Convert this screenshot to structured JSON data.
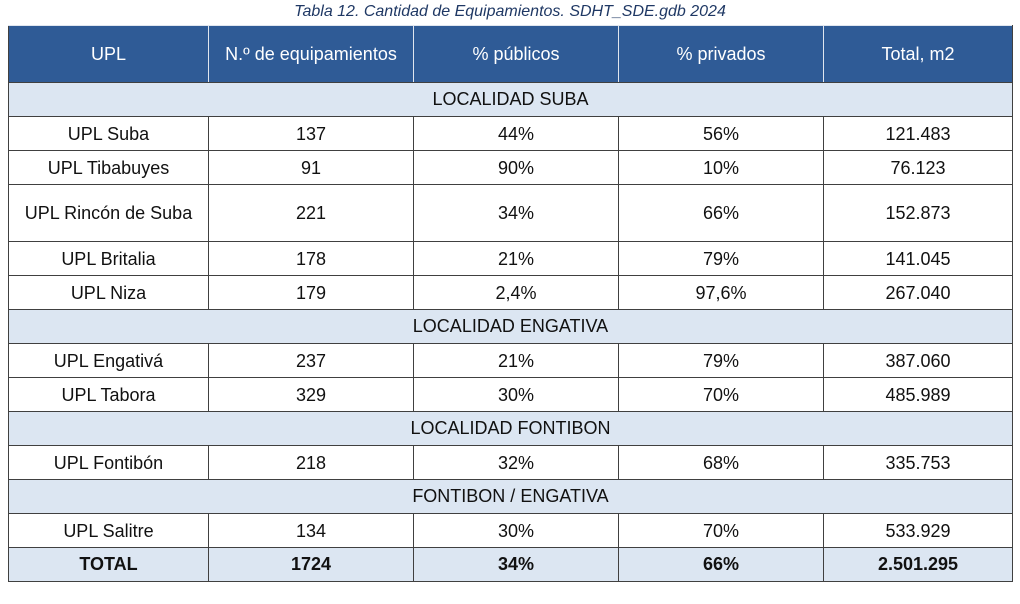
{
  "caption": "Tabla 12. Cantidad de Equipamientos. SDHT_SDE.gdb 2024",
  "headers": [
    "UPL",
    "N.º de equipamientos",
    "% públicos",
    "% privados",
    "Total, m2"
  ],
  "sections": [
    {
      "title": "LOCALIDAD SUBA",
      "rows": [
        {
          "upl": "UPL Suba",
          "n": "137",
          "pub": "44%",
          "priv": "56%",
          "total": "121.483"
        },
        {
          "upl": "UPL Tibabuyes",
          "n": "91",
          "pub": "90%",
          "priv": "10%",
          "total": "76.123"
        },
        {
          "upl": "UPL Rincón de Suba",
          "n": "221",
          "pub": "34%",
          "priv": "66%",
          "total": "152.873"
        },
        {
          "upl": "UPL Britalia",
          "n": "178",
          "pub": "21%",
          "priv": "79%",
          "total": "141.045"
        },
        {
          "upl": "UPL Niza",
          "n": "179",
          "pub": "2,4%",
          "priv": "97,6%",
          "total": "267.040"
        }
      ]
    },
    {
      "title": "LOCALIDAD ENGATIVA",
      "rows": [
        {
          "upl": "UPL Engativá",
          "n": "237",
          "pub": "21%",
          "priv": "79%",
          "total": "387.060"
        },
        {
          "upl": "UPL Tabora",
          "n": "329",
          "pub": "30%",
          "priv": "70%",
          "total": "485.989"
        }
      ]
    },
    {
      "title": "LOCALIDAD FONTIBON",
      "rows": [
        {
          "upl": "UPL Fontibón",
          "n": "218",
          "pub": "32%",
          "priv": "68%",
          "total": "335.753"
        }
      ]
    },
    {
      "title": "FONTIBON / ENGATIVA",
      "rows": [
        {
          "upl": "UPL Salitre",
          "n": "134",
          "pub": "30%",
          "priv": "70%",
          "total": "533.929"
        }
      ]
    }
  ],
  "total": {
    "upl": "TOTAL",
    "n": "1724",
    "pub": "34%",
    "priv": "66%",
    "total": "2.501.295"
  }
}
